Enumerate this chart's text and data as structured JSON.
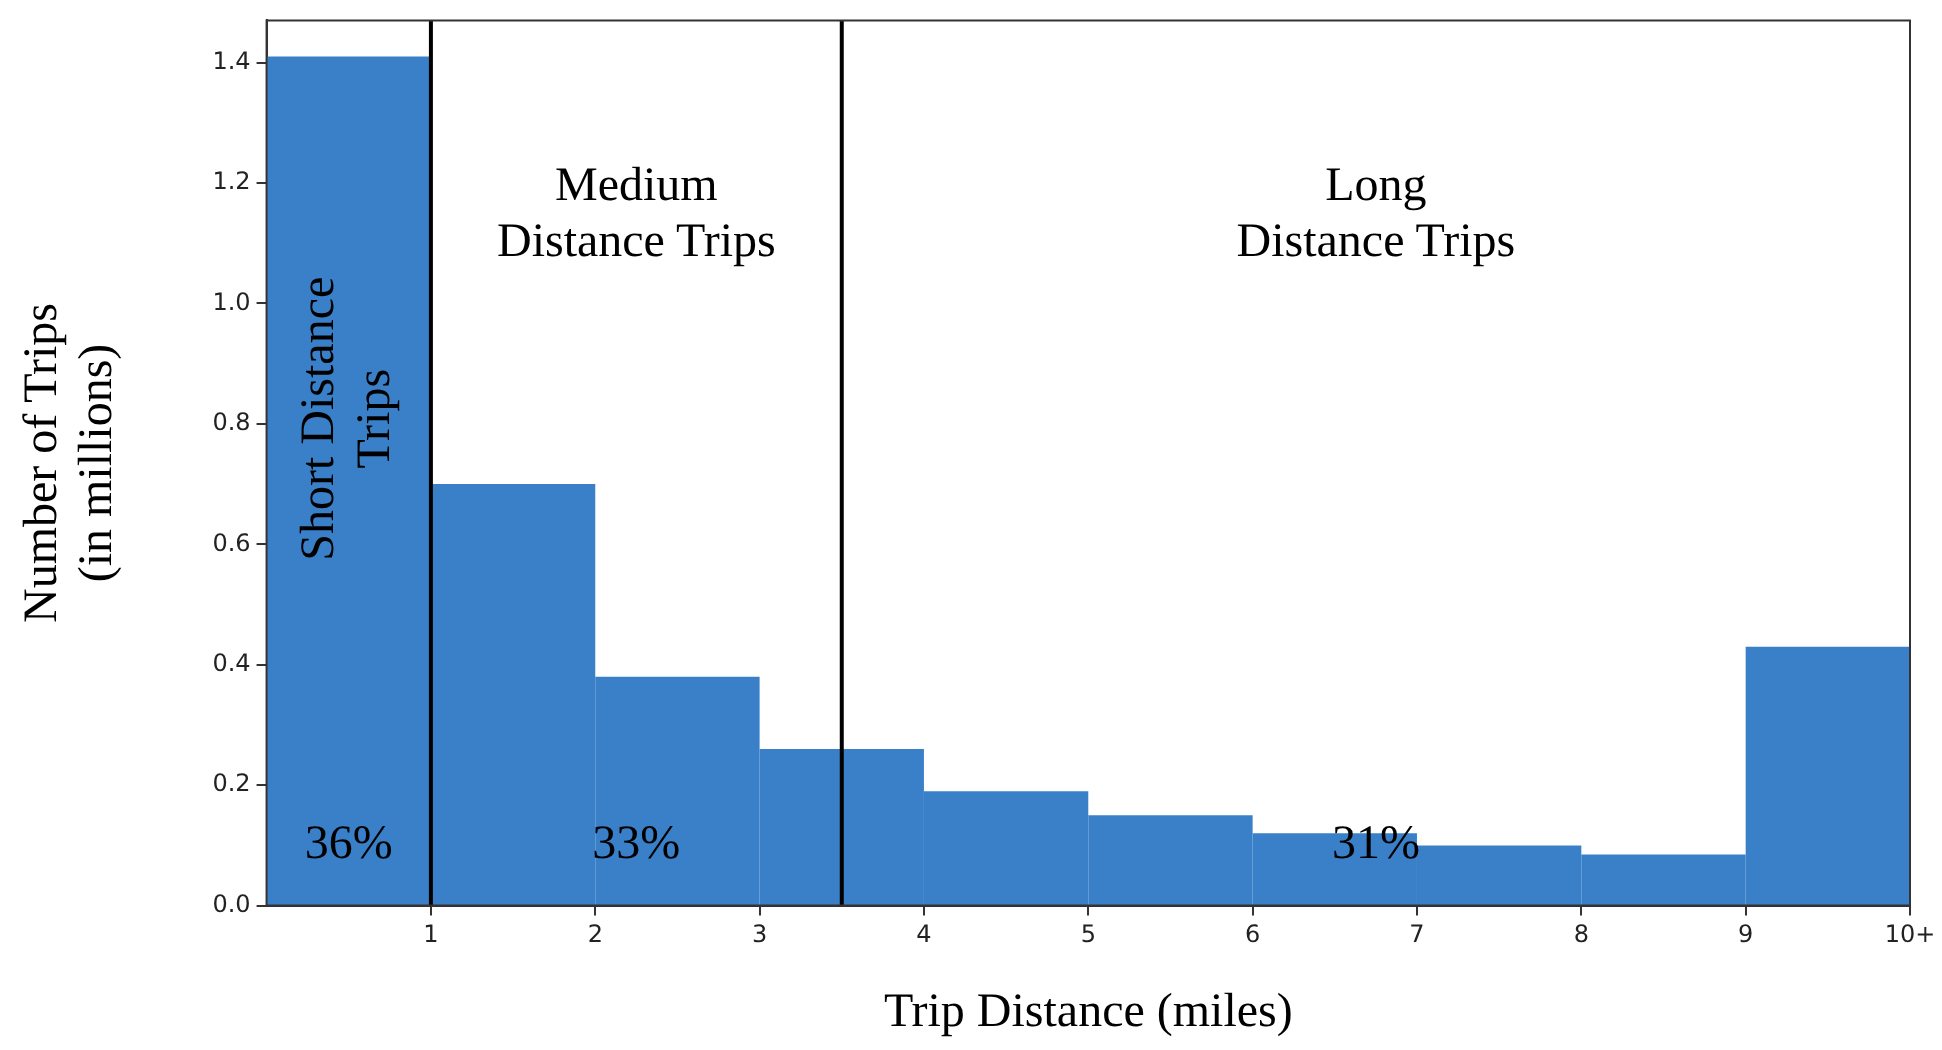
{
  "chart_data": {
    "type": "histogram",
    "xlabel": "Trip Distance (miles)",
    "ylabel": "Number of Trips\n(in millions)",
    "bins": [
      0,
      1,
      2,
      3,
      4,
      5,
      6,
      7,
      8,
      9,
      10
    ],
    "values": [
      1.41,
      0.7,
      0.38,
      0.26,
      0.19,
      0.15,
      0.12,
      0.1,
      0.085,
      0.43
    ],
    "color": "#3a80c9",
    "xlim": [
      0,
      10
    ],
    "xticks": [
      1,
      2,
      3,
      4,
      5,
      6,
      7,
      8,
      9,
      {
        "value": 10,
        "label": "10+"
      }
    ],
    "ylim": [
      0,
      1.47
    ],
    "yticks": [
      {
        "value": 0,
        "label": "0.0"
      },
      0.2,
      0.4,
      0.6,
      0.8,
      {
        "value": 1,
        "label": "1.0"
      },
      1.2,
      1.4
    ],
    "grid": false,
    "legend": false,
    "ref_lines": [
      {
        "axis": "x",
        "value": 1,
        "color": "#000000"
      },
      {
        "axis": "x",
        "value": 3.5,
        "color": "#000000"
      }
    ],
    "annotations": [
      "Short Distance\nTrips",
      "Medium\nDistance Trips",
      "Long\nDistance Trips",
      "36%",
      "33%",
      "31%"
    ]
  }
}
